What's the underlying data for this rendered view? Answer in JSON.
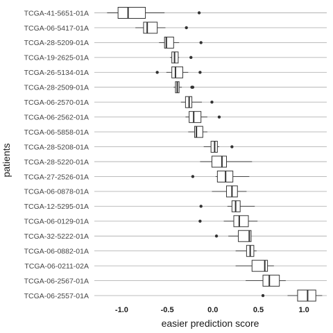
{
  "chart_data": {
    "type": "boxplot",
    "orientation": "horizontal",
    "xlabel": "easier prediction score",
    "ylabel": "patients",
    "xlim": [
      -1.3,
      1.25
    ],
    "xticks": [
      "-1.0",
      "-0.5",
      "0.0",
      "0.5",
      "1.0"
    ],
    "xtick_values": [
      -1.0,
      -0.5,
      0.0,
      0.5,
      1.0
    ],
    "grid": "horizontal",
    "colors": {
      "box_stroke": "#333333",
      "box_fill": "#ffffff",
      "grid": "#b3b3b3"
    },
    "series": [
      {
        "label": "TCGA-41-5651-01A",
        "whisker_low": -1.16,
        "q1": -1.04,
        "median": -0.93,
        "q3": -0.74,
        "whisker_high": -0.53,
        "outliers": [
          -0.15
        ]
      },
      {
        "label": "TCGA-06-5417-01A",
        "whisker_low": -0.85,
        "q1": -0.76,
        "median": -0.72,
        "q3": -0.61,
        "whisker_high": -0.52,
        "outliers": [
          -0.29
        ]
      },
      {
        "label": "TCGA-28-5209-01A",
        "whisker_low": -0.59,
        "q1": -0.53,
        "median": -0.51,
        "q3": -0.43,
        "whisker_high": -0.37,
        "outliers": [
          -0.13
        ]
      },
      {
        "label": "TCGA-19-2625-01A",
        "whisker_low": -0.47,
        "q1": -0.45,
        "median": -0.42,
        "q3": -0.38,
        "whisker_high": -0.37,
        "outliers": [
          -0.24
        ]
      },
      {
        "label": "TCGA-26-5134-01A",
        "whisker_low": -0.51,
        "q1": -0.45,
        "median": -0.41,
        "q3": -0.33,
        "whisker_high": -0.27,
        "outliers": [
          -0.61,
          -0.14
        ]
      },
      {
        "label": "TCGA-28-2509-01A",
        "whisker_low": -0.43,
        "q1": -0.41,
        "median": -0.39,
        "q3": -0.37,
        "whisker_high": -0.34,
        "outliers": [
          -0.23,
          -0.22
        ]
      },
      {
        "label": "TCGA-06-2570-01A",
        "whisker_low": -0.35,
        "q1": -0.3,
        "median": -0.26,
        "q3": -0.23,
        "whisker_high": -0.12,
        "outliers": [
          -0.01
        ]
      },
      {
        "label": "TCGA-06-2562-01A",
        "whisker_low": -0.3,
        "q1": -0.26,
        "median": -0.21,
        "q3": -0.13,
        "whisker_high": -0.06,
        "outliers": [
          0.07
        ]
      },
      {
        "label": "TCGA-06-5858-01A",
        "whisker_low": -0.27,
        "q1": -0.2,
        "median": -0.18,
        "q3": -0.11,
        "whisker_high": -0.06,
        "outliers": []
      },
      {
        "label": "TCGA-28-5208-01A",
        "whisker_low": -0.1,
        "q1": -0.02,
        "median": 0.02,
        "q3": 0.05,
        "whisker_high": 0.07,
        "outliers": [
          0.21
        ]
      },
      {
        "label": "TCGA-28-5220-01A",
        "whisker_low": -0.14,
        "q1": -0.01,
        "median": 0.1,
        "q3": 0.15,
        "whisker_high": 0.43,
        "outliers": []
      },
      {
        "label": "TCGA-27-2526-01A",
        "whisker_low": 0.03,
        "q1": 0.05,
        "median": 0.14,
        "q3": 0.22,
        "whisker_high": 0.4,
        "outliers": [
          -0.22
        ]
      },
      {
        "label": "TCGA-06-0878-01A",
        "whisker_low": -0.01,
        "q1": 0.15,
        "median": 0.21,
        "q3": 0.27,
        "whisker_high": 0.37,
        "outliers": []
      },
      {
        "label": "TCGA-12-5295-01A",
        "whisker_low": 0.16,
        "q1": 0.21,
        "median": 0.25,
        "q3": 0.3,
        "whisker_high": 0.46,
        "outliers": [
          -0.13
        ]
      },
      {
        "label": "TCGA-06-0129-01A",
        "whisker_low": 0.12,
        "q1": 0.23,
        "median": 0.29,
        "q3": 0.39,
        "whisker_high": 0.49,
        "outliers": [
          -0.14
        ]
      },
      {
        "label": "TCGA-32-5222-01A",
        "whisker_low": 0.17,
        "q1": 0.28,
        "median": 0.4,
        "q3": 0.42,
        "whisker_high": 0.42,
        "outliers": [
          0.04
        ]
      },
      {
        "label": "TCGA-06-0882-01A",
        "whisker_low": 0.25,
        "q1": 0.37,
        "median": 0.41,
        "q3": 0.45,
        "whisker_high": 0.48,
        "outliers": []
      },
      {
        "label": "TCGA-06-0211-02A",
        "whisker_low": 0.25,
        "q1": 0.43,
        "median": 0.57,
        "q3": 0.6,
        "whisker_high": 0.67,
        "outliers": []
      },
      {
        "label": "TCGA-06-2567-01A",
        "whisker_low": 0.36,
        "q1": 0.55,
        "median": 0.62,
        "q3": 0.73,
        "whisker_high": 0.8,
        "outliers": []
      },
      {
        "label": "TCGA-06-2557-01A",
        "whisker_low": 0.82,
        "q1": 0.93,
        "median": 1.04,
        "q3": 1.13,
        "whisker_high": 1.2,
        "outliers": [
          0.55
        ]
      }
    ]
  }
}
